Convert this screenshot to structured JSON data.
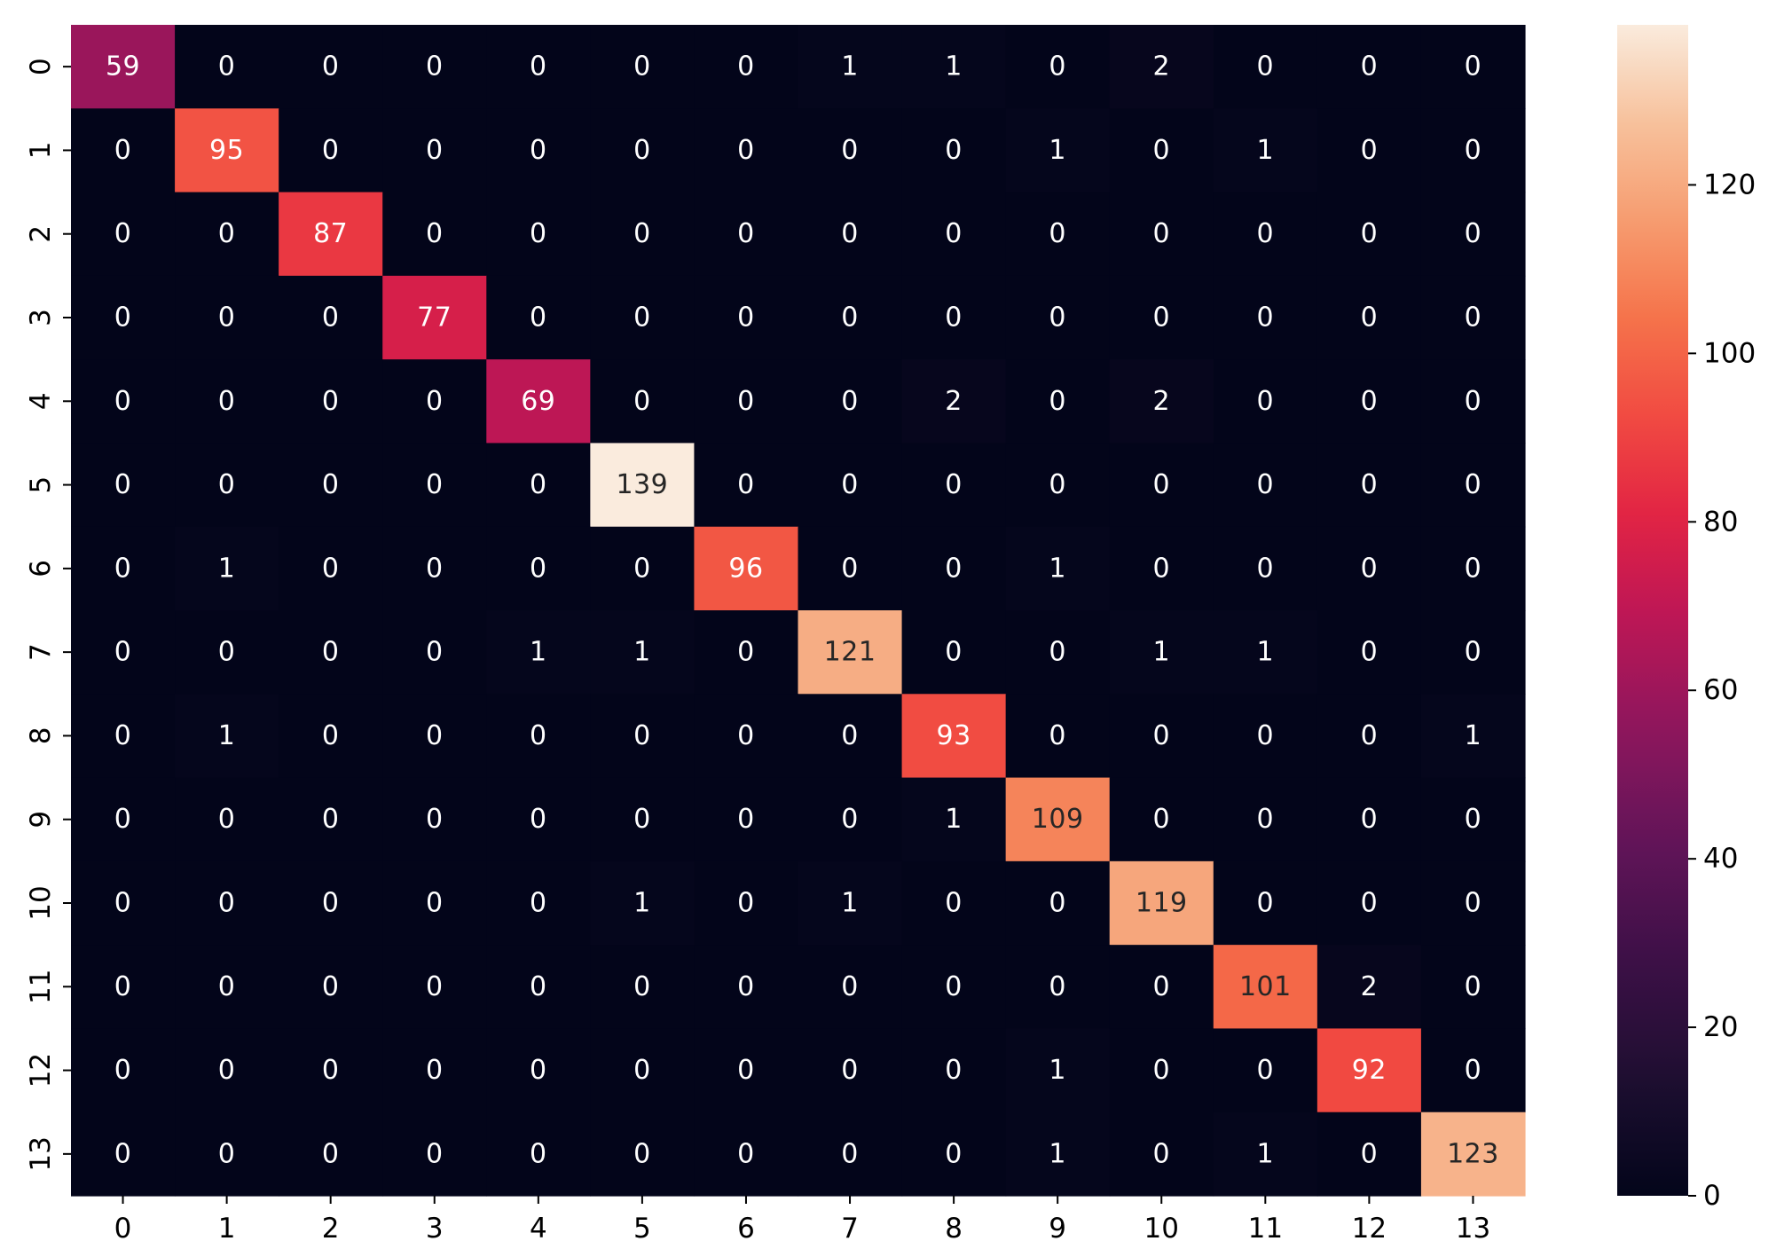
{
  "chart_data": {
    "type": "heatmap",
    "title": "",
    "xlabel": "",
    "ylabel": "",
    "x_tick_labels": [
      "0",
      "1",
      "2",
      "3",
      "4",
      "5",
      "6",
      "7",
      "8",
      "9",
      "10",
      "11",
      "12",
      "13"
    ],
    "y_tick_labels": [
      "0",
      "1",
      "2",
      "3",
      "4",
      "5",
      "6",
      "7",
      "8",
      "9",
      "10",
      "11",
      "12",
      "13"
    ],
    "matrix": [
      [
        59,
        0,
        0,
        0,
        0,
        0,
        0,
        1,
        1,
        0,
        2,
        0,
        0,
        0
      ],
      [
        0,
        95,
        0,
        0,
        0,
        0,
        0,
        0,
        0,
        1,
        0,
        1,
        0,
        0
      ],
      [
        0,
        0,
        87,
        0,
        0,
        0,
        0,
        0,
        0,
        0,
        0,
        0,
        0,
        0
      ],
      [
        0,
        0,
        0,
        77,
        0,
        0,
        0,
        0,
        0,
        0,
        0,
        0,
        0,
        0
      ],
      [
        0,
        0,
        0,
        0,
        69,
        0,
        0,
        0,
        2,
        0,
        2,
        0,
        0,
        0
      ],
      [
        0,
        0,
        0,
        0,
        0,
        139,
        0,
        0,
        0,
        0,
        0,
        0,
        0,
        0
      ],
      [
        0,
        1,
        0,
        0,
        0,
        0,
        96,
        0,
        0,
        1,
        0,
        0,
        0,
        0
      ],
      [
        0,
        0,
        0,
        0,
        1,
        1,
        0,
        121,
        0,
        0,
        1,
        1,
        0,
        0
      ],
      [
        0,
        1,
        0,
        0,
        0,
        0,
        0,
        0,
        93,
        0,
        0,
        0,
        0,
        1
      ],
      [
        0,
        0,
        0,
        0,
        0,
        0,
        0,
        0,
        1,
        109,
        0,
        0,
        0,
        0
      ],
      [
        0,
        0,
        0,
        0,
        0,
        1,
        0,
        1,
        0,
        0,
        119,
        0,
        0,
        0
      ],
      [
        0,
        0,
        0,
        0,
        0,
        0,
        0,
        0,
        0,
        0,
        0,
        101,
        2,
        0
      ],
      [
        0,
        0,
        0,
        0,
        0,
        0,
        0,
        0,
        0,
        1,
        0,
        0,
        92,
        0
      ],
      [
        0,
        0,
        0,
        0,
        0,
        0,
        0,
        0,
        0,
        1,
        0,
        1,
        0,
        123
      ]
    ],
    "colormap": "rocket",
    "colorbar": {
      "range": [
        0,
        139
      ],
      "ticks": [
        0,
        20,
        40,
        60,
        80,
        100,
        120
      ],
      "tick_labels": [
        "0",
        "20",
        "40",
        "60",
        "80",
        "100",
        "120"
      ],
      "placement": "right"
    },
    "annotations": "cell values shown in each cell",
    "grid": false,
    "legend": "none"
  }
}
